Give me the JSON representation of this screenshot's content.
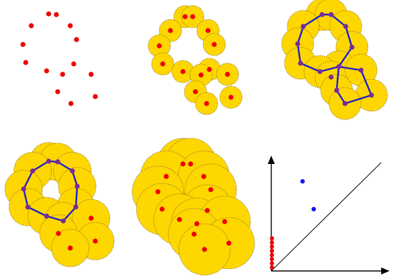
{
  "colors": {
    "disk_fill": "#FFD700",
    "disk_stroke": "#7a6a2a",
    "point": "#EE0000",
    "edge": "#1F1FCC",
    "vertex": "#7A2A9A",
    "pd_point": "#1414EE",
    "axis": "#000000"
  },
  "panels": [
    {
      "id": "points-only",
      "radius_level": 0,
      "show_edges": false
    },
    {
      "id": "small-balls",
      "radius_level": 1,
      "show_edges": false
    },
    {
      "id": "two-loops",
      "radius_level": 2,
      "show_edges": true,
      "loops": 2
    },
    {
      "id": "one-loop",
      "radius_level": 3,
      "show_edges": true,
      "loops": 1
    },
    {
      "id": "no-loop",
      "radius_level": 4,
      "show_edges": false
    }
  ],
  "persistence_diagram": {
    "h0_points": 8,
    "h1_points": 2,
    "has_diagonal": true
  }
}
